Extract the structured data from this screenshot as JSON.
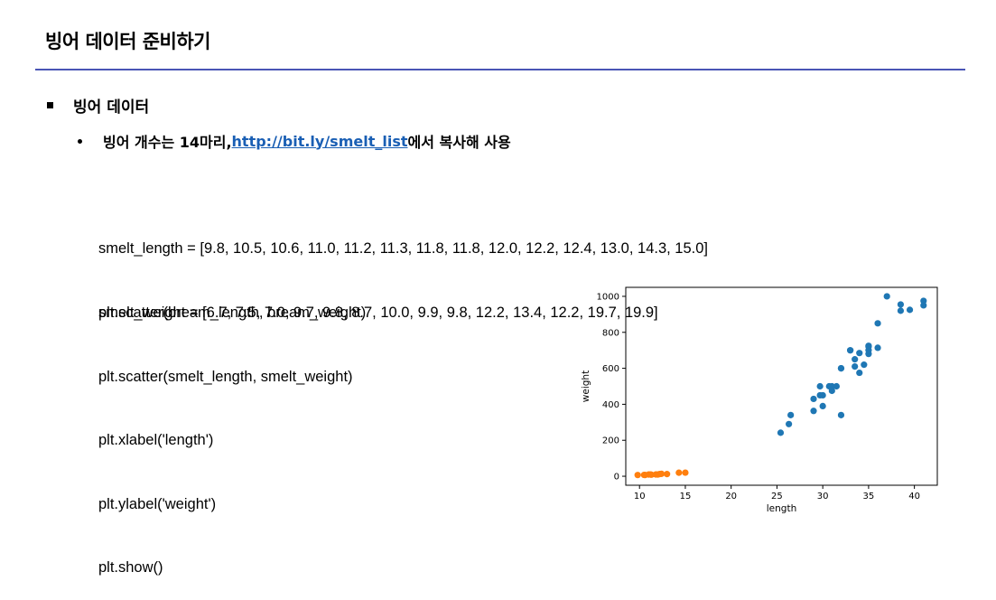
{
  "header": {
    "title": "빙어 데이터 준비하기"
  },
  "section": {
    "heading": "빙어 데이터",
    "note": {
      "prefix": "빙어 개수는 14마리, ",
      "link": "http://bit.ly/smelt_list",
      "suffix": "에서 복사해 사용"
    }
  },
  "code": {
    "lines1": [
      "smelt_length = [9.8, 10.5, 10.6, 11.0, 11.2, 11.3, 11.8, 11.8, 12.0, 12.2, 12.4, 13.0, 14.3, 15.0]",
      "smelt_weight = [6.7, 7.5, 7.0, 9.7, 9.8, 8.7, 10.0, 9.9, 9.8, 12.2, 13.4, 12.2, 19.7, 19.9]"
    ],
    "lines2": [
      "plt.scatter(bream_length, bream_weight)",
      "plt.scatter(smelt_length, smelt_weight)",
      "plt.xlabel('length')",
      "plt.ylabel('weight')",
      "plt.show()"
    ]
  },
  "chart_data": {
    "type": "scatter",
    "xlabel": "length",
    "ylabel": "weight",
    "xlim": [
      8.5,
      42.5
    ],
    "ylim": [
      -50,
      1050
    ],
    "xticks": [
      10,
      15,
      20,
      25,
      30,
      35,
      40
    ],
    "yticks": [
      0,
      200,
      400,
      600,
      800,
      1000
    ],
    "grid": false,
    "series": [
      {
        "color": "#1f77b4",
        "x": [
          25.4,
          26.3,
          26.5,
          29.0,
          29.0,
          29.7,
          29.7,
          30.0,
          30.0,
          30.7,
          31.0,
          31.0,
          31.5,
          32.0,
          32.0,
          32.0,
          33.0,
          33.0,
          33.5,
          33.5,
          34.0,
          34.0,
          34.5,
          35.0,
          35.0,
          35.0,
          35.0,
          36.0,
          36.0,
          37.0,
          38.5,
          38.5,
          39.5,
          41.0,
          41.0
        ],
        "y": [
          242.0,
          290.0,
          340.0,
          363.0,
          430.0,
          450.0,
          500.0,
          390.0,
          450.0,
          500.0,
          475.0,
          500.0,
          500.0,
          340.0,
          600.0,
          600.0,
          700.0,
          700.0,
          610.0,
          650.0,
          575.0,
          685.0,
          620.0,
          680.0,
          700.0,
          725.0,
          720.0,
          714.0,
          850.0,
          1000.0,
          920.0,
          955.0,
          925.0,
          975.0,
          950.0
        ]
      },
      {
        "color": "#ff7f0e",
        "x": [
          9.8,
          10.5,
          10.6,
          11.0,
          11.2,
          11.3,
          11.8,
          11.8,
          12.0,
          12.2,
          12.4,
          13.0,
          14.3,
          15.0
        ],
        "y": [
          6.7,
          7.5,
          7.0,
          9.7,
          9.8,
          8.7,
          10.0,
          9.9,
          9.8,
          12.2,
          13.4,
          12.2,
          19.7,
          19.9
        ]
      }
    ]
  }
}
